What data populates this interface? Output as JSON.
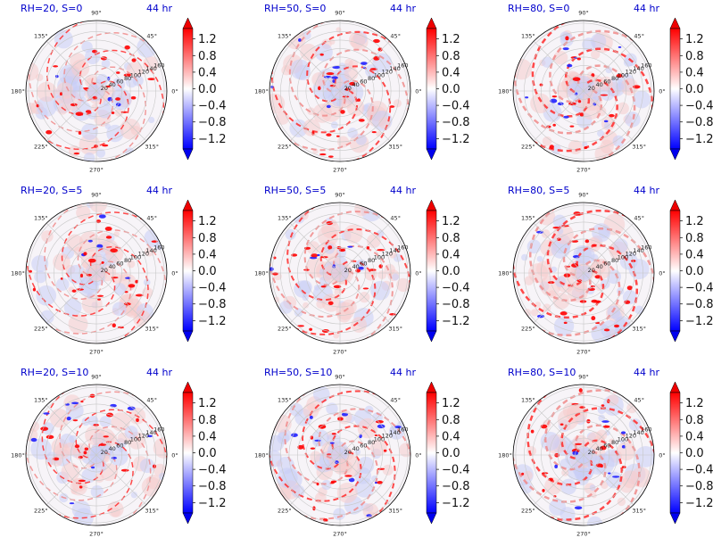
{
  "figure": {
    "panel_time": "44 hr",
    "angle_tick_labels": [
      "0°",
      "45°",
      "90°",
      "135°",
      "180°",
      "225°",
      "270°",
      "315°"
    ],
    "radial_tick_labels": [
      "20",
      "40",
      "60",
      "80",
      "100",
      "120",
      "140",
      "160"
    ],
    "colorbar_tick_labels": [
      "1.2",
      "0.8",
      "0.4",
      "0.0",
      "−0.4",
      "−0.8",
      "−1.2"
    ],
    "title_color": "#0000cc"
  },
  "chart_data": [
    {
      "type": "heatmap",
      "projection": "polar",
      "title": "RH=20, S=0",
      "time": "44 hr",
      "theta_ticks_deg": [
        0,
        45,
        90,
        135,
        180,
        225,
        270,
        315
      ],
      "r_ticks": [
        20,
        40,
        60,
        80,
        100,
        120,
        140,
        160
      ],
      "colorbar": {
        "cmap": "bwr",
        "ticks": [
          1.2,
          0.8,
          0.4,
          0.0,
          -0.4,
          -0.8,
          -1.2
        ],
        "extend": "both"
      }
    },
    {
      "type": "heatmap",
      "projection": "polar",
      "title": "RH=50, S=0",
      "time": "44 hr",
      "theta_ticks_deg": [
        0,
        45,
        90,
        135,
        180,
        225,
        270,
        315
      ],
      "r_ticks": [
        20,
        40,
        60,
        80,
        100,
        120,
        140,
        160
      ],
      "colorbar": {
        "cmap": "bwr",
        "ticks": [
          1.2,
          0.8,
          0.4,
          0.0,
          -0.4,
          -0.8,
          -1.2
        ],
        "extend": "both"
      }
    },
    {
      "type": "heatmap",
      "projection": "polar",
      "title": "RH=80, S=0",
      "time": "44 hr",
      "theta_ticks_deg": [
        0,
        45,
        90,
        135,
        180,
        225,
        270,
        315
      ],
      "r_ticks": [
        20,
        40,
        60,
        80,
        100,
        120,
        140,
        160
      ],
      "colorbar": {
        "cmap": "bwr",
        "ticks": [
          1.2,
          0.8,
          0.4,
          0.0,
          -0.4,
          -0.8,
          -1.2
        ],
        "extend": "both"
      }
    },
    {
      "type": "heatmap",
      "projection": "polar",
      "title": "RH=20, S=5",
      "time": "44 hr",
      "theta_ticks_deg": [
        0,
        45,
        90,
        135,
        180,
        225,
        270,
        315
      ],
      "r_ticks": [
        20,
        40,
        60,
        80,
        100,
        120,
        140,
        160
      ],
      "colorbar": {
        "cmap": "bwr",
        "ticks": [
          1.2,
          0.8,
          0.4,
          0.0,
          -0.4,
          -0.8,
          -1.2
        ],
        "extend": "both"
      }
    },
    {
      "type": "heatmap",
      "projection": "polar",
      "title": "RH=50, S=5",
      "time": "44 hr",
      "theta_ticks_deg": [
        0,
        45,
        90,
        135,
        180,
        225,
        270,
        315
      ],
      "r_ticks": [
        20,
        40,
        60,
        80,
        100,
        120,
        140,
        160
      ],
      "colorbar": {
        "cmap": "bwr",
        "ticks": [
          1.2,
          0.8,
          0.4,
          0.0,
          -0.4,
          -0.8,
          -1.2
        ],
        "extend": "both"
      }
    },
    {
      "type": "heatmap",
      "projection": "polar",
      "title": "RH=80, S=5",
      "time": "44 hr",
      "theta_ticks_deg": [
        0,
        45,
        90,
        135,
        180,
        225,
        270,
        315
      ],
      "r_ticks": [
        20,
        40,
        60,
        80,
        100,
        120,
        140,
        160
      ],
      "colorbar": {
        "cmap": "bwr",
        "ticks": [
          1.2,
          0.8,
          0.4,
          0.0,
          -0.4,
          -0.8,
          -1.2
        ],
        "extend": "both"
      }
    },
    {
      "type": "heatmap",
      "projection": "polar",
      "title": "RH=20, S=10",
      "time": "44 hr",
      "theta_ticks_deg": [
        0,
        45,
        90,
        135,
        180,
        225,
        270,
        315
      ],
      "r_ticks": [
        20,
        40,
        60,
        80,
        100,
        120,
        140,
        160
      ],
      "colorbar": {
        "cmap": "bwr",
        "ticks": [
          1.2,
          0.8,
          0.4,
          0.0,
          -0.4,
          -0.8,
          -1.2
        ],
        "extend": "both"
      }
    },
    {
      "type": "heatmap",
      "projection": "polar",
      "title": "RH=50, S=10",
      "time": "44 hr",
      "theta_ticks_deg": [
        0,
        45,
        90,
        135,
        180,
        225,
        270,
        315
      ],
      "r_ticks": [
        20,
        40,
        60,
        80,
        100,
        120,
        140,
        160
      ],
      "colorbar": {
        "cmap": "bwr",
        "ticks": [
          1.2,
          0.8,
          0.4,
          0.0,
          -0.4,
          -0.8,
          -1.2
        ],
        "extend": "both"
      }
    },
    {
      "type": "heatmap",
      "projection": "polar",
      "title": "RH=80, S=10",
      "time": "44 hr",
      "theta_ticks_deg": [
        0,
        45,
        90,
        135,
        180,
        225,
        270,
        315
      ],
      "r_ticks": [
        20,
        40,
        60,
        80,
        100,
        120,
        140,
        160
      ],
      "colorbar": {
        "cmap": "bwr",
        "ticks": [
          1.2,
          0.8,
          0.4,
          0.0,
          -0.4,
          -0.8,
          -1.2
        ],
        "extend": "both"
      }
    }
  ]
}
